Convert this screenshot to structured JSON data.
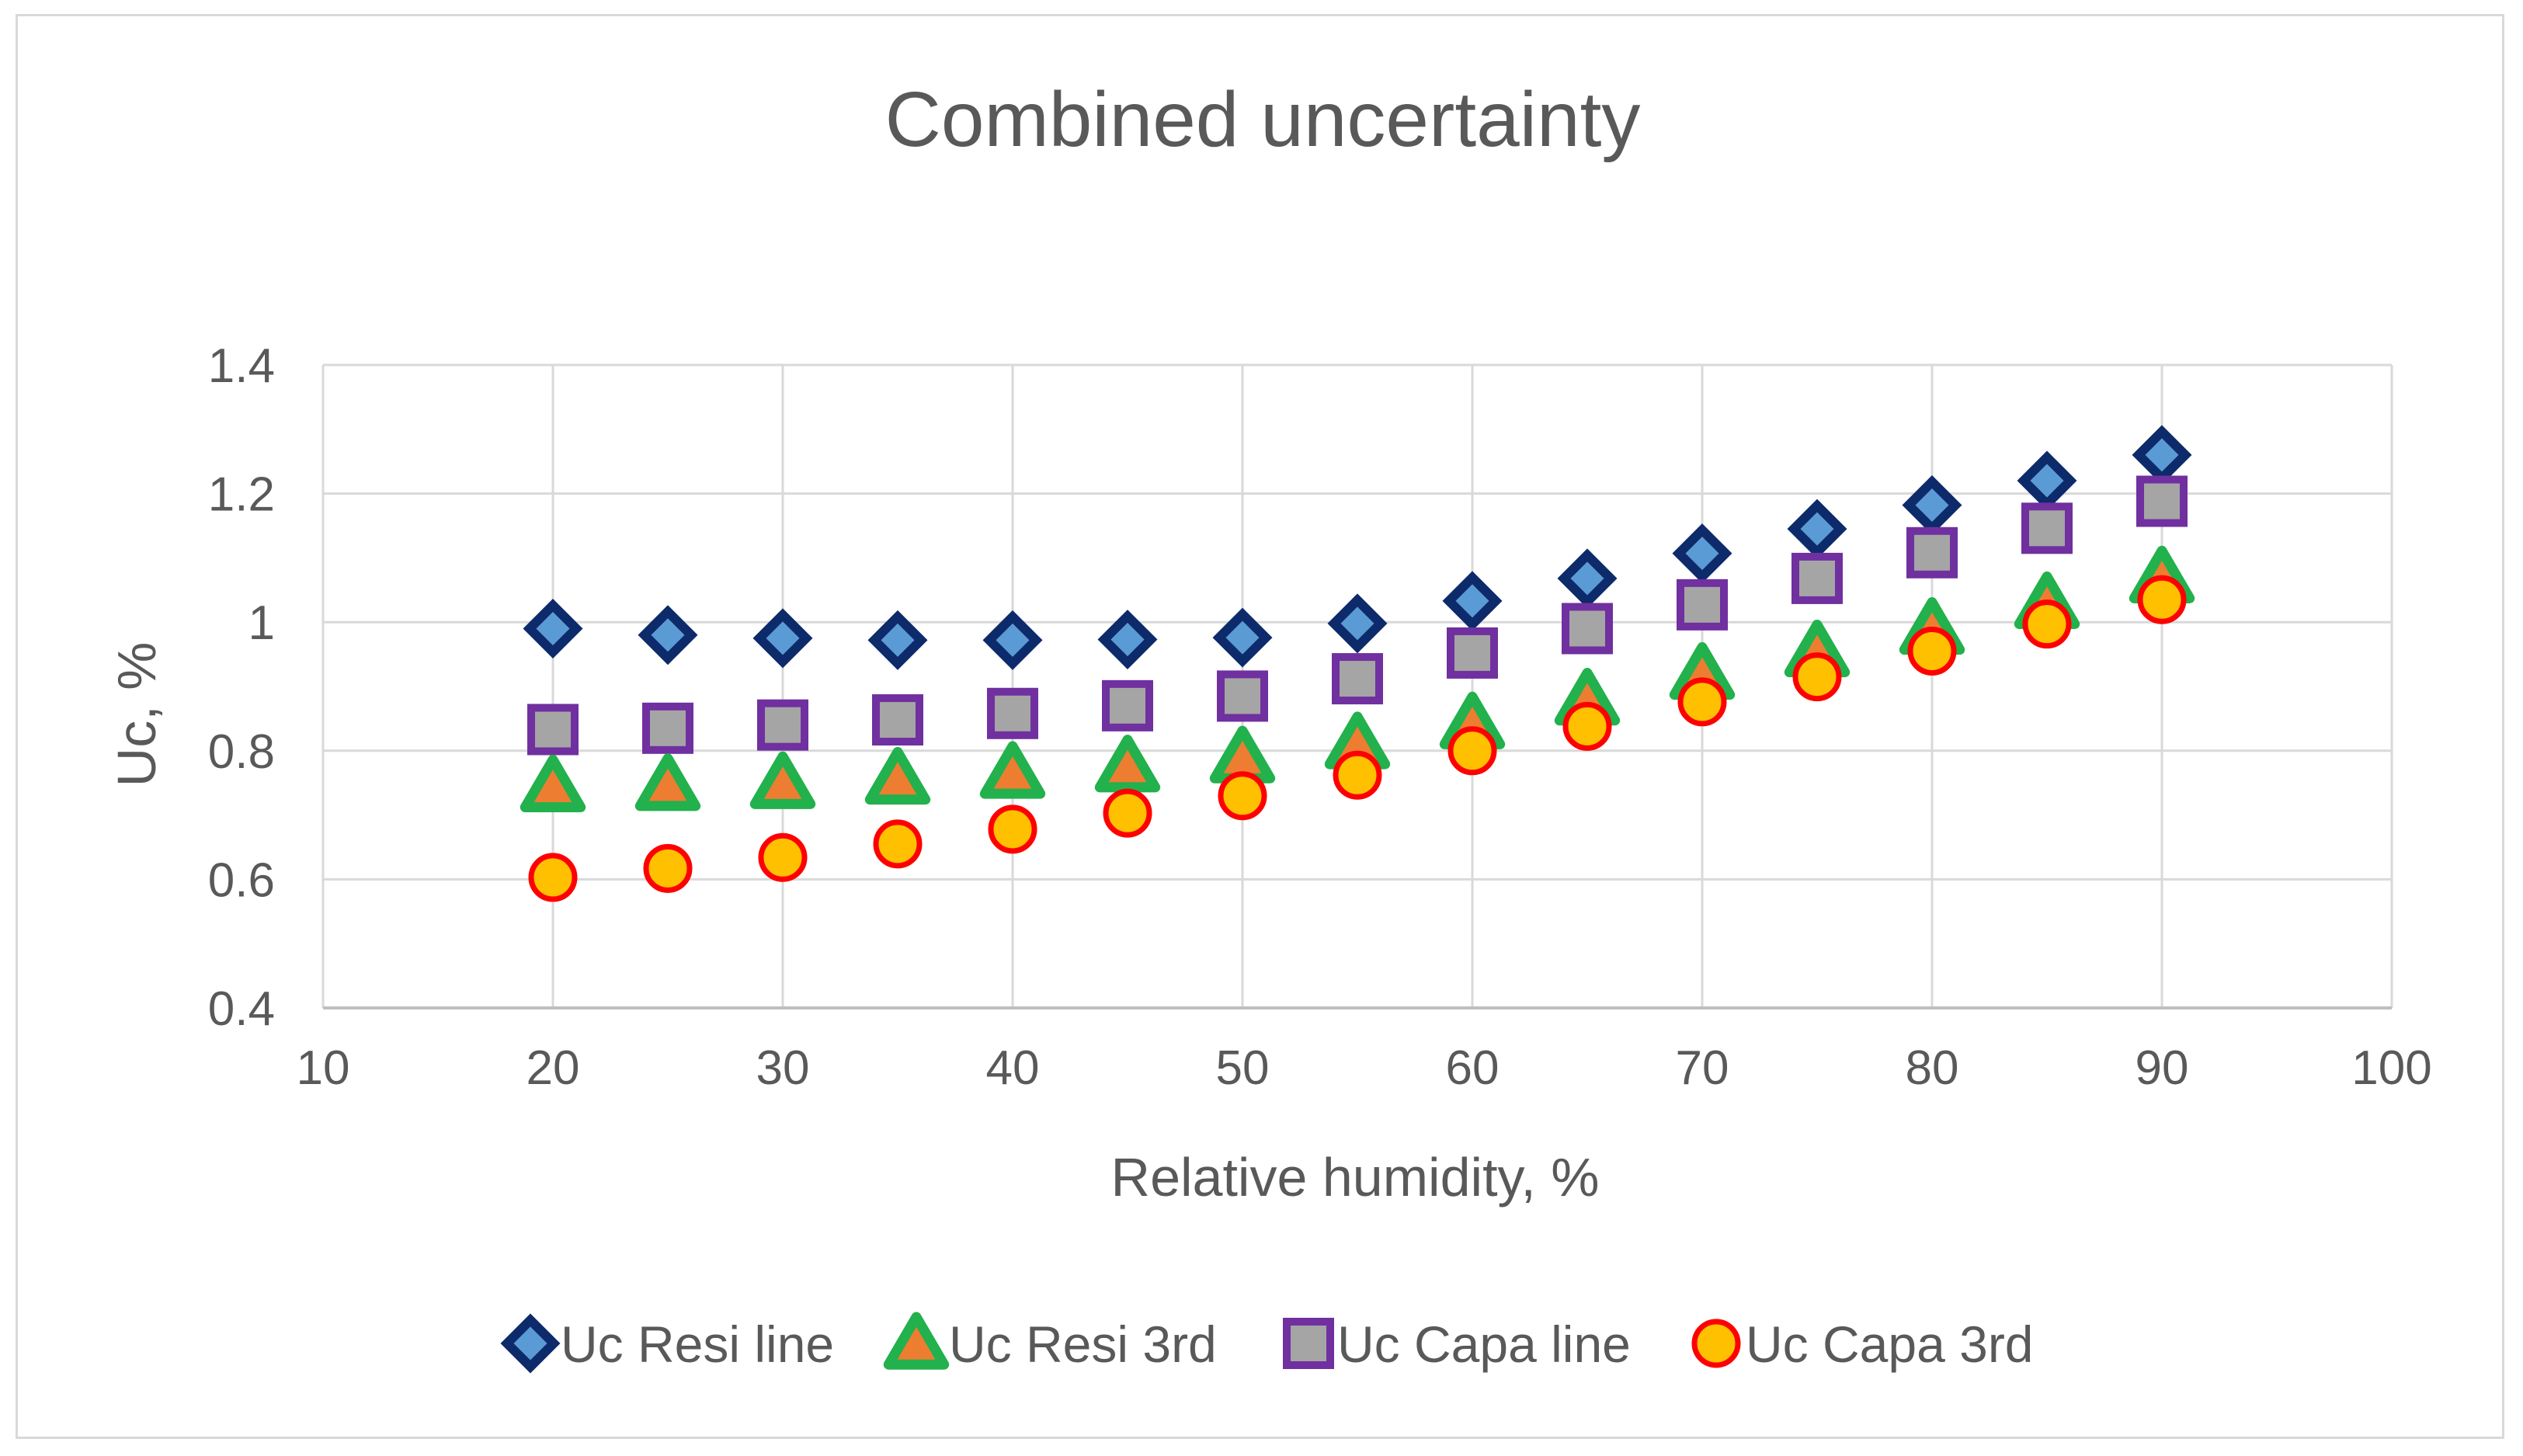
{
  "chart_data": {
    "type": "scatter",
    "title": "Combined uncertainty",
    "xlabel": "Relative humidity, %",
    "ylabel": "Uc, %",
    "xlim": [
      10,
      100
    ],
    "ylim": [
      0.4,
      1.4
    ],
    "xticks": [
      10,
      20,
      30,
      40,
      50,
      60,
      70,
      80,
      90,
      100
    ],
    "yticks": [
      0.4,
      0.6,
      0.8,
      1,
      1.2,
      1.4
    ],
    "grid": true,
    "legend_position": "bottom",
    "x": [
      20,
      25,
      30,
      35,
      40,
      45,
      50,
      55,
      60,
      65,
      70,
      75,
      80,
      85,
      90
    ],
    "series": [
      {
        "name": "Uc Resi line",
        "marker": "diamond",
        "fill": "#5b9bd5",
        "stroke": "#0d2a6b",
        "values": [
          0.99,
          0.98,
          0.975,
          0.972,
          0.972,
          0.973,
          0.976,
          0.998,
          1.033,
          1.068,
          1.107,
          1.145,
          1.182,
          1.22,
          1.26
        ]
      },
      {
        "name": "Uc Resi 3rd",
        "marker": "triangle",
        "fill": "#ed7d31",
        "stroke": "#22b14c",
        "values": [
          0.745,
          0.747,
          0.75,
          0.757,
          0.766,
          0.776,
          0.79,
          0.812,
          0.843,
          0.88,
          0.92,
          0.955,
          0.99,
          1.03,
          1.07
        ]
      },
      {
        "name": "Uc Capa line",
        "marker": "square",
        "fill": "#a5a5a5",
        "stroke": "#7030a0",
        "values": [
          0.833,
          0.835,
          0.84,
          0.848,
          0.858,
          0.87,
          0.885,
          0.912,
          0.952,
          0.99,
          1.027,
          1.068,
          1.108,
          1.146,
          1.188
        ]
      },
      {
        "name": "Uc Capa 3rd",
        "marker": "circle",
        "fill": "#ffc000",
        "stroke": "#ff0000",
        "values": [
          0.603,
          0.617,
          0.634,
          0.655,
          0.678,
          0.703,
          0.73,
          0.762,
          0.8,
          0.838,
          0.876,
          0.915,
          0.955,
          0.997,
          1.035
        ]
      }
    ]
  }
}
